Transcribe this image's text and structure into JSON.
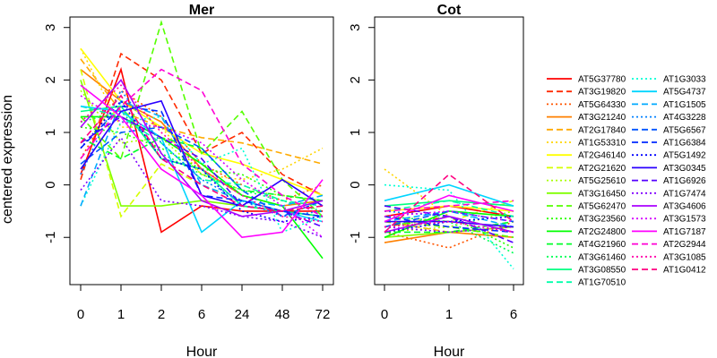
{
  "chart_data": [
    {
      "type": "line",
      "title": "Mer",
      "xlabel": "Hour",
      "ylabel": "centered expression",
      "categories": [
        "0",
        "1",
        "2",
        "6",
        "24",
        "48",
        "72"
      ],
      "ylim": [
        -1.9,
        3.2
      ],
      "yticks": [
        -1,
        0,
        1,
        2,
        3
      ],
      "series": [
        {
          "name": "AT5G37780",
          "color": "#ff0000",
          "dash": "solid",
          "values": [
            0.2,
            2.2,
            -0.9,
            -0.4,
            -0.5,
            -0.5,
            -0.5
          ]
        },
        {
          "name": "AT3G19820",
          "color": "#ff2a00",
          "dash": "dashed",
          "values": [
            0.1,
            2.5,
            2.0,
            0.6,
            1.0,
            0.2,
            -0.2
          ]
        },
        {
          "name": "AT5G64330",
          "color": "#ff5500",
          "dash": "dotted",
          "values": [
            0.5,
            1.8,
            1.3,
            0.4,
            0.0,
            -0.3,
            0.0
          ]
        },
        {
          "name": "AT3G21240",
          "color": "#ff8000",
          "dash": "solid",
          "values": [
            2.2,
            1.6,
            1.2,
            0.3,
            -0.2,
            -0.4,
            -0.3
          ]
        },
        {
          "name": "AT2G17840",
          "color": "#ffaa00",
          "dash": "dashed",
          "values": [
            2.4,
            1.4,
            1.1,
            0.9,
            0.8,
            0.6,
            0.4
          ]
        },
        {
          "name": "AT1G53310",
          "color": "#ffd500",
          "dash": "dotted",
          "values": [
            2.6,
            1.1,
            1.1,
            0.2,
            0.1,
            0.3,
            0.7
          ]
        },
        {
          "name": "AT2G46140",
          "color": "#ffff00",
          "dash": "solid",
          "values": [
            2.6,
            1.6,
            1.1,
            0.6,
            0.4,
            0.1,
            -0.2
          ]
        },
        {
          "name": "AT2G21620",
          "color": "#d5ff00",
          "dash": "dashed",
          "values": [
            2.2,
            -0.6,
            0.4,
            0.0,
            -0.3,
            -0.5,
            -0.4
          ]
        },
        {
          "name": "AT5G25610",
          "color": "#aaff00",
          "dash": "dotted",
          "values": [
            1.8,
            0.8,
            0.9,
            0.2,
            -0.1,
            -0.2,
            -0.3
          ]
        },
        {
          "name": "AT3G16450",
          "color": "#80ff00",
          "dash": "solid",
          "values": [
            2.0,
            -0.4,
            -0.4,
            -0.3,
            -0.4,
            -0.5,
            -0.6
          ]
        },
        {
          "name": "AT5G62470",
          "color": "#55ff00",
          "dash": "dashed",
          "values": [
            1.3,
            0.5,
            3.1,
            0.6,
            1.4,
            0.1,
            -0.6
          ]
        },
        {
          "name": "AT3G23560",
          "color": "#2aff00",
          "dash": "dotted",
          "values": [
            1.1,
            1.0,
            0.7,
            0.3,
            0.2,
            -0.2,
            -0.3
          ]
        },
        {
          "name": "AT2G24800",
          "color": "#00ff00",
          "dash": "solid",
          "values": [
            1.3,
            1.3,
            0.9,
            0.4,
            -0.2,
            -0.4,
            -1.4
          ]
        },
        {
          "name": "AT4G21960",
          "color": "#00ff2a",
          "dash": "dashed",
          "values": [
            0.9,
            0.5,
            0.9,
            0.7,
            -0.1,
            -0.2,
            -0.3
          ]
        },
        {
          "name": "AT3G61460",
          "color": "#00ff55",
          "dash": "dotted",
          "values": [
            1.2,
            1.4,
            0.6,
            0.2,
            -0.1,
            -0.3,
            -0.5
          ]
        },
        {
          "name": "AT3G08550",
          "color": "#00ff80",
          "dash": "solid",
          "values": [
            1.4,
            1.5,
            0.5,
            0.3,
            -0.4,
            -0.5,
            -0.6
          ]
        },
        {
          "name": "AT1G70510",
          "color": "#00ffaa",
          "dash": "dashed",
          "values": [
            1.5,
            1.3,
            0.8,
            0.1,
            0.0,
            -0.3,
            -0.4
          ]
        },
        {
          "name": "AT1G3033",
          "color": "#00ffd5",
          "dash": "dotted",
          "values": [
            -0.4,
            1.2,
            1.3,
            0.4,
            0.7,
            -0.9,
            -0.6
          ]
        },
        {
          "name": "AT5G4737",
          "color": "#00d5ff",
          "dash": "solid",
          "values": [
            1.5,
            1.4,
            0.9,
            -0.9,
            -0.3,
            -0.5,
            -0.7
          ]
        },
        {
          "name": "AT1G1505",
          "color": "#00aaff",
          "dash": "dashed",
          "values": [
            -0.4,
            1.6,
            1.3,
            0.0,
            -0.3,
            -0.4,
            -0.2
          ]
        },
        {
          "name": "AT4G3228",
          "color": "#0080ff",
          "dash": "dotted",
          "values": [
            0.2,
            1.8,
            0.8,
            0.1,
            -0.3,
            -0.6,
            -0.5
          ]
        },
        {
          "name": "AT5G6567",
          "color": "#0055ff",
          "dash": "dashed",
          "values": [
            0.4,
            1.0,
            1.1,
            0.7,
            -0.1,
            -0.6,
            -0.3
          ]
        },
        {
          "name": "AT1G6384",
          "color": "#002aff",
          "dash": "dashed",
          "values": [
            0.7,
            1.5,
            1.4,
            -0.2,
            -0.3,
            -0.5,
            -0.6
          ]
        },
        {
          "name": "AT5G1492",
          "color": "#0000ff",
          "dash": "dotted",
          "values": [
            0.7,
            1.6,
            0.5,
            0.3,
            -0.5,
            -0.7,
            -0.6
          ]
        },
        {
          "name": "AT3G0345",
          "color": "#2a00ff",
          "dash": "solid",
          "values": [
            0.3,
            1.4,
            1.6,
            -0.2,
            -0.4,
            0.1,
            -0.4
          ]
        },
        {
          "name": "AT1G6926",
          "color": "#5500ff",
          "dash": "dashed",
          "values": [
            0.8,
            1.3,
            0.9,
            0.5,
            -0.4,
            -0.5,
            -0.8
          ]
        },
        {
          "name": "AT1G7474",
          "color": "#8000ff",
          "dash": "dotted",
          "values": [
            -0.1,
            0.9,
            -0.3,
            -0.4,
            -0.6,
            -0.7,
            -1.0
          ]
        },
        {
          "name": "AT3G4606",
          "color": "#aa00ff",
          "dash": "solid",
          "values": [
            1.1,
            2.0,
            0.6,
            -0.3,
            -0.6,
            -0.5,
            -0.3
          ]
        },
        {
          "name": "AT3G1573",
          "color": "#d500ff",
          "dash": "dotted",
          "values": [
            1.7,
            1.2,
            1.1,
            0.8,
            0.1,
            -0.4,
            -1.0
          ]
        },
        {
          "name": "AT1G7187",
          "color": "#ff00ff",
          "dash": "solid",
          "values": [
            1.9,
            1.3,
            0.3,
            -0.2,
            -1.0,
            -0.9,
            0.1
          ]
        },
        {
          "name": "AT2G2944",
          "color": "#ff00d5",
          "dash": "dashed",
          "values": [
            0.5,
            1.5,
            2.2,
            1.8,
            0.4,
            -0.2,
            -0.6
          ]
        },
        {
          "name": "AT3G1085",
          "color": "#ff00aa",
          "dash": "dotted",
          "values": [
            1.2,
            1.9,
            1.0,
            0.3,
            -0.2,
            -0.6,
            -0.7
          ]
        },
        {
          "name": "AT1G0412",
          "color": "#ff0080",
          "dash": "dashed",
          "values": [
            0.8,
            1.7,
            0.5,
            0.0,
            -0.4,
            -0.5,
            -0.4
          ]
        }
      ]
    },
    {
      "type": "line",
      "title": "Cot",
      "xlabel": "Hour",
      "ylabel": "",
      "categories": [
        "0",
        "1",
        "6"
      ],
      "ylim": [
        -1.9,
        3.2
      ],
      "yticks": [
        -1,
        0,
        1,
        2,
        3
      ],
      "series": [
        {
          "name": "AT5G37780",
          "color": "#ff0000",
          "dash": "solid",
          "values": [
            -0.6,
            -0.4,
            -0.6
          ]
        },
        {
          "name": "AT3G19820",
          "color": "#ff2a00",
          "dash": "dashed",
          "values": [
            -0.8,
            -0.6,
            -0.9
          ]
        },
        {
          "name": "AT5G64330",
          "color": "#ff5500",
          "dash": "dotted",
          "values": [
            -0.9,
            -1.2,
            -0.7
          ]
        },
        {
          "name": "AT3G21240",
          "color": "#ff8000",
          "dash": "solid",
          "values": [
            -1.1,
            -0.9,
            -1.0
          ]
        },
        {
          "name": "AT2G17840",
          "color": "#ffaa00",
          "dash": "dashed",
          "values": [
            -0.7,
            -0.9,
            -0.8
          ]
        },
        {
          "name": "AT1G53310",
          "color": "#ffd500",
          "dash": "dotted",
          "values": [
            0.3,
            -0.6,
            -0.9
          ]
        },
        {
          "name": "AT2G46140",
          "color": "#ffff00",
          "dash": "solid",
          "values": [
            -0.5,
            -0.4,
            -0.5
          ]
        },
        {
          "name": "AT2G21620",
          "color": "#d5ff00",
          "dash": "dashed",
          "values": [
            -0.6,
            -0.7,
            -0.3
          ]
        },
        {
          "name": "AT5G25610",
          "color": "#aaff00",
          "dash": "dotted",
          "values": [
            -0.9,
            -0.8,
            -0.5
          ]
        },
        {
          "name": "AT3G16450",
          "color": "#80ff00",
          "dash": "solid",
          "values": [
            -1.0,
            -0.9,
            -0.8
          ]
        },
        {
          "name": "AT5G62470",
          "color": "#55ff00",
          "dash": "dashed",
          "values": [
            -0.7,
            -0.8,
            -1.0
          ]
        },
        {
          "name": "AT3G23560",
          "color": "#2aff00",
          "dash": "dotted",
          "values": [
            -0.8,
            -0.6,
            -1.2
          ]
        },
        {
          "name": "AT2G24800",
          "color": "#00ff00",
          "dash": "solid",
          "values": [
            -1.0,
            -0.5,
            -0.6
          ]
        },
        {
          "name": "AT4G21960",
          "color": "#00ff2a",
          "dash": "dashed",
          "values": [
            -0.9,
            -0.9,
            -0.7
          ]
        },
        {
          "name": "AT3G61460",
          "color": "#00ff55",
          "dash": "dotted",
          "values": [
            -0.6,
            -0.7,
            -1.3
          ]
        },
        {
          "name": "AT3G08550",
          "color": "#00ff80",
          "dash": "solid",
          "values": [
            -0.4,
            -0.3,
            -0.4
          ]
        },
        {
          "name": "AT1G70510",
          "color": "#00ffaa",
          "dash": "dashed",
          "values": [
            -0.5,
            -0.3,
            -0.6
          ]
        },
        {
          "name": "AT1G3033",
          "color": "#00ffd5",
          "dash": "dotted",
          "values": [
            0.0,
            -0.1,
            -1.6
          ]
        },
        {
          "name": "AT5G4737",
          "color": "#00d5ff",
          "dash": "solid",
          "values": [
            -0.3,
            0.0,
            -0.4
          ]
        },
        {
          "name": "AT1G1505",
          "color": "#00aaff",
          "dash": "dashed",
          "values": [
            -0.7,
            -0.5,
            -0.8
          ]
        },
        {
          "name": "AT4G3228",
          "color": "#0080ff",
          "dash": "dotted",
          "values": [
            -0.5,
            -0.6,
            -0.9
          ]
        },
        {
          "name": "AT5G6567",
          "color": "#0055ff",
          "dash": "dashed",
          "values": [
            -0.8,
            -0.5,
            -0.7
          ]
        },
        {
          "name": "AT1G6384",
          "color": "#002aff",
          "dash": "dashed",
          "values": [
            -0.6,
            -0.8,
            -0.9
          ]
        },
        {
          "name": "AT5G1492",
          "color": "#0000ff",
          "dash": "dotted",
          "values": [
            -0.9,
            -0.7,
            -0.6
          ]
        },
        {
          "name": "AT3G0345",
          "color": "#2a00ff",
          "dash": "solid",
          "values": [
            -0.7,
            -0.7,
            -0.8
          ]
        },
        {
          "name": "AT1G6926",
          "color": "#5500ff",
          "dash": "dashed",
          "values": [
            -0.4,
            -0.6,
            -1.1
          ]
        },
        {
          "name": "AT1G7474",
          "color": "#8000ff",
          "dash": "dotted",
          "values": [
            -0.8,
            -0.9,
            -0.8
          ]
        },
        {
          "name": "AT3G4606",
          "color": "#aa00ff",
          "dash": "solid",
          "values": [
            -0.9,
            -0.6,
            -0.9
          ]
        },
        {
          "name": "AT3G1573",
          "color": "#d500ff",
          "dash": "dotted",
          "values": [
            -0.6,
            -0.5,
            -0.7
          ]
        },
        {
          "name": "AT1G7187",
          "color": "#ff00ff",
          "dash": "solid",
          "values": [
            -0.7,
            -0.2,
            -0.5
          ]
        },
        {
          "name": "AT2G2944",
          "color": "#ff00d5",
          "dash": "dashed",
          "values": [
            -0.5,
            -0.4,
            -0.3
          ]
        },
        {
          "name": "AT3G1085",
          "color": "#ff00aa",
          "dash": "dotted",
          "values": [
            -0.8,
            -0.7,
            -0.9
          ]
        },
        {
          "name": "AT1G0412",
          "color": "#ff0080",
          "dash": "dashed",
          "values": [
            -0.9,
            0.2,
            -0.7
          ]
        }
      ]
    }
  ]
}
